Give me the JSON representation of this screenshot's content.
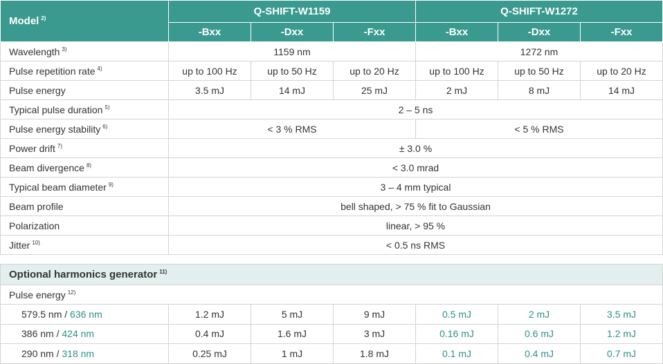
{
  "header": {
    "model": "Model",
    "model_note": "2)",
    "groups": [
      {
        "name": "Q-SHIFT-W1159",
        "variants": [
          "-Bxx",
          "-Dxx",
          "-Fxx"
        ]
      },
      {
        "name": "Q-SHIFT-W1272",
        "variants": [
          "-Bxx",
          "-Dxx",
          "-Fxx"
        ]
      }
    ]
  },
  "rows": [
    {
      "label": "Wavelength",
      "note": "3)",
      "cells": [
        "1159 nm",
        "1272 nm"
      ]
    },
    {
      "label": "Pulse repetition rate",
      "note": "4)",
      "cells": [
        "up to 100 Hz",
        "up to 50 Hz",
        "up to 20 Hz",
        "up to 100 Hz",
        "up to 50 Hz",
        "up to 20 Hz"
      ]
    },
    {
      "label": "Pulse energy",
      "cells": [
        "3.5 mJ",
        "14 mJ",
        "25 mJ",
        "2 mJ",
        "8 mJ",
        "14 mJ"
      ]
    },
    {
      "label": "Typical pulse duration",
      "note": "5)",
      "cells": [
        "2 – 5 ns"
      ]
    },
    {
      "label": "Pulse energy stability",
      "note": "6)",
      "cells": [
        "< 3 % RMS",
        "< 5 % RMS"
      ]
    },
    {
      "label": "Power drift",
      "note": "7)",
      "cells": [
        "± 3.0 %"
      ]
    },
    {
      "label": "Beam divergence",
      "note": "8)",
      "cells": [
        "< 3.0 mrad"
      ]
    },
    {
      "label": "Typical beam diameter",
      "note": "9)",
      "cells": [
        "3 – 4 mm typical"
      ]
    },
    {
      "label": "Beam profile",
      "cells": [
        "bell shaped, > 75 % fit to Gaussian"
      ]
    },
    {
      "label": "Polarization",
      "cells": [
        "linear, > 95 %"
      ]
    },
    {
      "label": "Jitter",
      "note": "10)",
      "cells": [
        "< 0.5 ns RMS"
      ]
    }
  ],
  "harmonics": {
    "title": "Optional harmonics generator",
    "note": "11)",
    "subheader": "Pulse energy",
    "subheader_note": "12)",
    "rows": [
      {
        "w1159": "579.5 nm",
        "sep": "/",
        "w1272": "636 nm",
        "cells": [
          "1.2 mJ",
          "5 mJ",
          "9 mJ",
          "0.5 mJ",
          "2 mJ",
          "3.5 mJ"
        ]
      },
      {
        "w1159": "386 nm",
        "sep": "/",
        "w1272": "424 nm",
        "cells": [
          "0.4 mJ",
          "1.6 mJ",
          "3 mJ",
          "0.16 mJ",
          "0.6 mJ",
          "1.2 mJ"
        ]
      },
      {
        "w1159": "290 nm",
        "sep": "/",
        "w1272": "318 nm",
        "cells": [
          "0.25 mJ",
          "1 mJ",
          "1.8 mJ",
          "0.1 mJ",
          "0.4 mJ",
          "0.7 mJ"
        ]
      }
    ]
  }
}
